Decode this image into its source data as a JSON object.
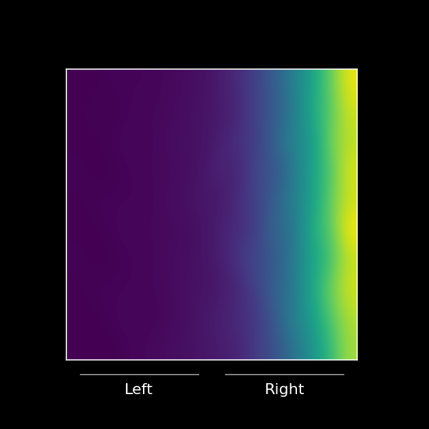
{
  "chart_data": {
    "type": "heatmap",
    "categories": [
      "Left",
      "Right"
    ],
    "color": "viridis",
    "tick_labels": false,
    "cells": [
      [
        0.02,
        0.02,
        0.03,
        0.03,
        0.03,
        0.04,
        0.05,
        0.06,
        0.09,
        0.14,
        0.2,
        0.3,
        0.42,
        0.55,
        0.72,
        0.92
      ],
      [
        0.02,
        0.03,
        0.02,
        0.03,
        0.04,
        0.04,
        0.05,
        0.07,
        0.08,
        0.12,
        0.22,
        0.28,
        0.4,
        0.58,
        0.7,
        0.88
      ],
      [
        0.02,
        0.02,
        0.03,
        0.04,
        0.03,
        0.05,
        0.06,
        0.06,
        0.1,
        0.16,
        0.18,
        0.32,
        0.45,
        0.5,
        0.75,
        0.85
      ],
      [
        0.03,
        0.02,
        0.02,
        0.03,
        0.04,
        0.04,
        0.05,
        0.07,
        0.12,
        0.1,
        0.24,
        0.26,
        0.38,
        0.56,
        0.68,
        0.9
      ],
      [
        0.02,
        0.03,
        0.03,
        0.03,
        0.03,
        0.05,
        0.06,
        0.08,
        0.07,
        0.15,
        0.2,
        0.3,
        0.44,
        0.52,
        0.73,
        0.87
      ],
      [
        0.02,
        0.02,
        0.03,
        0.04,
        0.04,
        0.04,
        0.05,
        0.06,
        0.11,
        0.13,
        0.19,
        0.34,
        0.36,
        0.6,
        0.7,
        0.95
      ],
      [
        0.03,
        0.02,
        0.02,
        0.03,
        0.03,
        0.05,
        0.05,
        0.07,
        0.09,
        0.17,
        0.23,
        0.27,
        0.41,
        0.54,
        0.66,
        0.86
      ],
      [
        0.02,
        0.03,
        0.03,
        0.03,
        0.04,
        0.04,
        0.06,
        0.06,
        0.08,
        0.12,
        0.21,
        0.31,
        0.39,
        0.57,
        0.74,
        0.89
      ],
      [
        0.02,
        0.02,
        0.03,
        0.04,
        0.03,
        0.04,
        0.05,
        0.08,
        0.1,
        0.14,
        0.17,
        0.29,
        0.43,
        0.53,
        0.69,
        0.84
      ],
      [
        0.02,
        0.02,
        0.02,
        0.03,
        0.04,
        0.05,
        0.06,
        0.07,
        0.09,
        0.11,
        0.19,
        0.25,
        0.37,
        0.49,
        0.64,
        0.82
      ]
    ]
  }
}
